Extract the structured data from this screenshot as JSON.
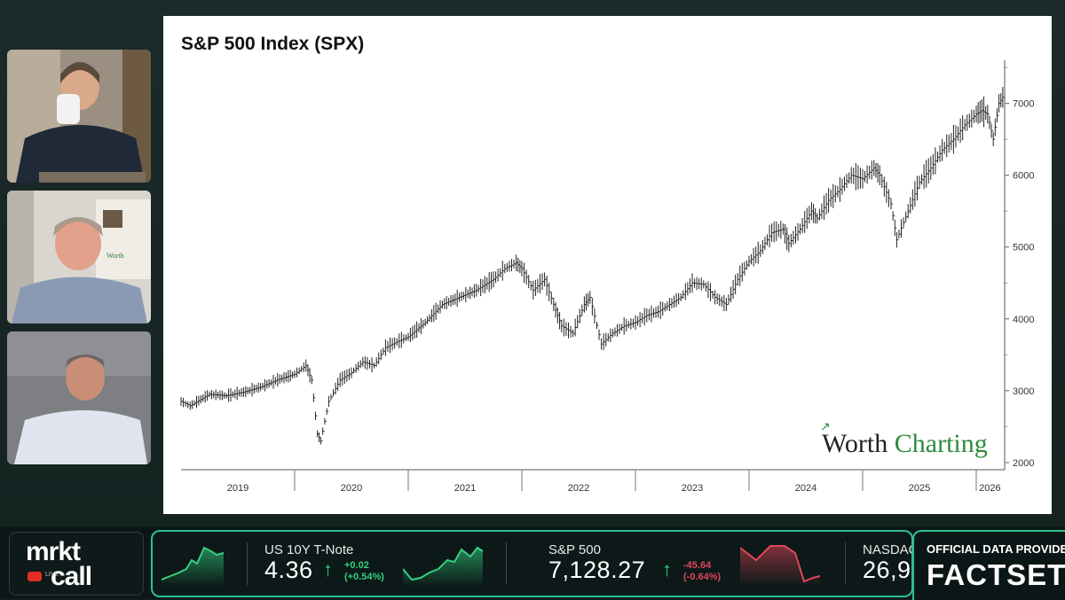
{
  "chart_data": {
    "type": "line",
    "title": "S&P 500 Index (SPX)",
    "x_tick_labels": [
      "2019",
      "2020",
      "2021",
      "2022",
      "2023",
      "2024",
      "2025",
      "2026"
    ],
    "y_tick_labels": [
      "2000",
      "3000",
      "4000",
      "5000",
      "6000",
      "7000"
    ],
    "ylim": [
      1900,
      7600
    ],
    "xlim": [
      2019.0,
      2026.25
    ],
    "series": [
      {
        "x": [
          2019.0,
          2019.08,
          2019.25,
          2019.4,
          2019.55,
          2019.7,
          2019.85,
          2020.0,
          2020.1,
          2020.15,
          2020.2,
          2020.23,
          2020.3,
          2020.4,
          2020.5,
          2020.6,
          2020.7,
          2020.8,
          2020.9,
          2021.0,
          2021.15,
          2021.3,
          2021.45,
          2021.6,
          2021.75,
          2021.85,
          2021.95,
          2022.0,
          2022.1,
          2022.2,
          2022.28,
          2022.35,
          2022.45,
          2022.55,
          2022.6,
          2022.7,
          2022.8,
          2022.9,
          2023.0,
          2023.1,
          2023.2,
          2023.3,
          2023.4,
          2023.5,
          2023.6,
          2023.7,
          2023.8,
          2023.9,
          2024.0,
          2024.1,
          2024.2,
          2024.3,
          2024.35,
          2024.45,
          2024.55,
          2024.6,
          2024.7,
          2024.8,
          2024.9,
          2025.0,
          2025.1,
          2025.15,
          2025.25,
          2025.3,
          2025.4,
          2025.5,
          2025.6,
          2025.7,
          2025.8,
          2025.9,
          2026.0,
          2026.05,
          2026.1,
          2026.15,
          2026.2,
          2026.25
        ],
        "values": [
          2850,
          2790,
          2950,
          2930,
          2980,
          3050,
          3150,
          3230,
          3350,
          3150,
          2400,
          2300,
          2850,
          3150,
          3250,
          3400,
          3350,
          3600,
          3680,
          3750,
          3950,
          4200,
          4300,
          4400,
          4550,
          4700,
          4780,
          4700,
          4400,
          4550,
          4200,
          3900,
          3800,
          4200,
          4300,
          3650,
          3800,
          3900,
          3950,
          4050,
          4100,
          4200,
          4300,
          4500,
          4480,
          4300,
          4200,
          4550,
          4800,
          4950,
          5200,
          5250,
          5050,
          5250,
          5500,
          5400,
          5650,
          5800,
          6000,
          5950,
          6100,
          6000,
          5600,
          5100,
          5500,
          5900,
          6100,
          6350,
          6500,
          6700,
          6850,
          6900,
          6850,
          6500,
          7000,
          7128
        ]
      }
    ]
  },
  "chart": {
    "brand_part1": "Worth ",
    "brand_part2": "Charting"
  },
  "ticker": {
    "items": [
      {
        "name": "US 10Y T-Note",
        "value": "4.36",
        "arrow": "↑",
        "change": "+0.02",
        "change_pct": "(+0.54%)"
      },
      {
        "name": "S&P 500",
        "value": "7,128.27",
        "arrow": "↑",
        "change": "-45.64",
        "change_pct": "(-0.64%)"
      },
      {
        "name": "NASDAQ",
        "value": "26,9"
      }
    ],
    "colors": {
      "up": "#35d07f",
      "down": "#e0465a",
      "accent": "#2fbf8f"
    }
  },
  "logo": {
    "line1": "mrkt",
    "line2": "call",
    "badge": "LIVE"
  },
  "provider": {
    "label": "OFFICIAL DATA PROVIDER",
    "name": "FACTSET"
  }
}
